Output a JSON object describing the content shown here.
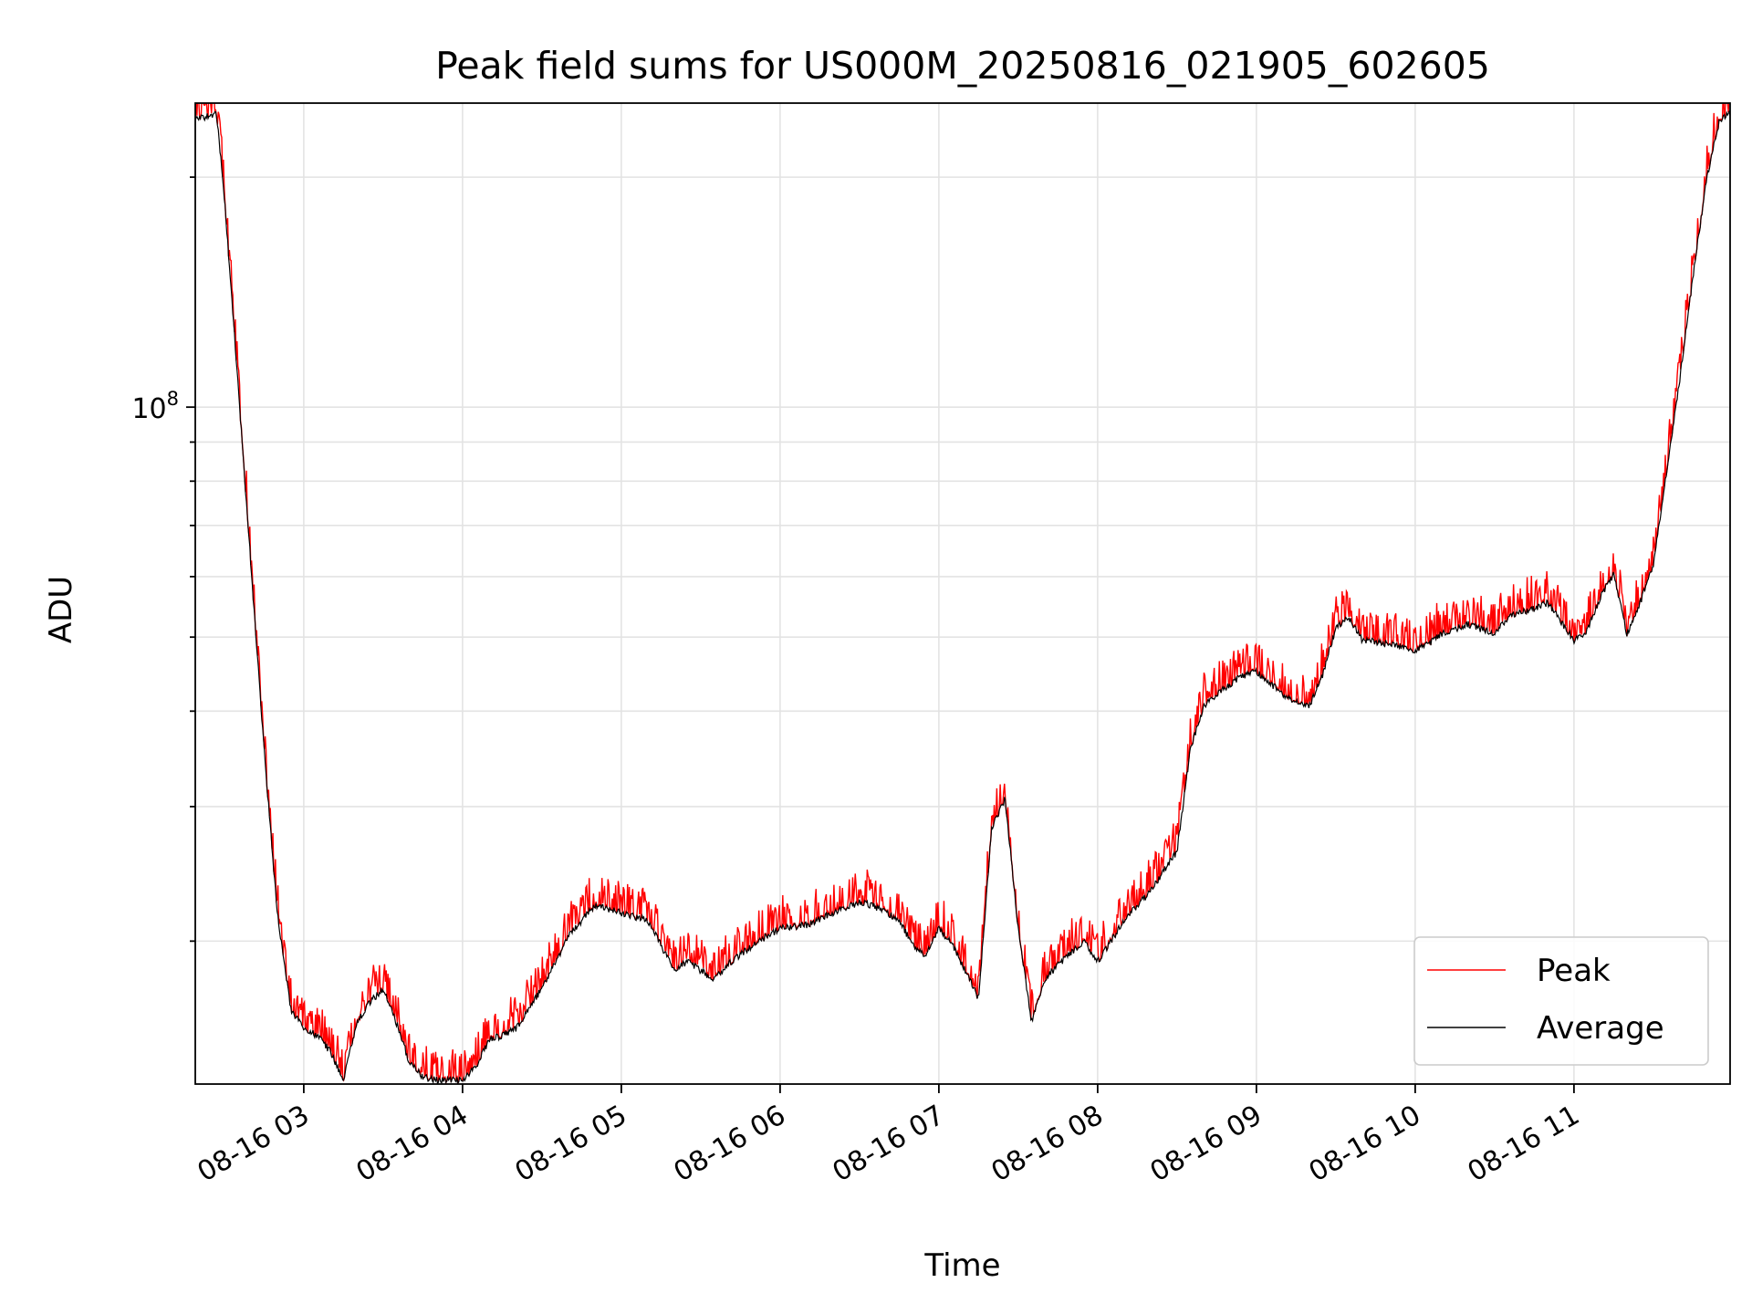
{
  "chart_data": {
    "type": "line",
    "title": "Peak field sums for US000M_20250816_021905_602605",
    "xlabel": "Time",
    "ylabel": "ADU",
    "yscale": "log",
    "ylim": [
      13000000,
      250000000
    ],
    "xlim": [
      "2025-08-16 02:19",
      "2025-08-16 11:59"
    ],
    "x_ticks": [
      {
        "t": "2025-08-16 03:00",
        "label": "08-16 03"
      },
      {
        "t": "2025-08-16 04:00",
        "label": "08-16 04"
      },
      {
        "t": "2025-08-16 05:00",
        "label": "08-16 05"
      },
      {
        "t": "2025-08-16 06:00",
        "label": "08-16 06"
      },
      {
        "t": "2025-08-16 07:00",
        "label": "08-16 07"
      },
      {
        "t": "2025-08-16 08:00",
        "label": "08-16 08"
      },
      {
        "t": "2025-08-16 09:00",
        "label": "08-16 09"
      },
      {
        "t": "2025-08-16 10:00",
        "label": "08-16 10"
      },
      {
        "t": "2025-08-16 11:00",
        "label": "08-16 11"
      }
    ],
    "y_major_tick": {
      "value": 100000000,
      "base": "10",
      "exp": "8"
    },
    "y_minor_ticks": [
      20000000,
      30000000,
      40000000,
      50000000,
      60000000,
      70000000,
      80000000,
      90000000,
      200000000
    ],
    "grid": true,
    "legend": "lower-right",
    "series": [
      {
        "name": "Peak",
        "color": "#ff0000",
        "role": "peak"
      },
      {
        "name": "Average",
        "color": "#000000",
        "role": "average"
      }
    ],
    "x": [
      "2025-08-16 02:19",
      "2025-08-16 02:27",
      "2025-08-16 02:30",
      "2025-08-16 02:35",
      "2025-08-16 02:40",
      "2025-08-16 02:45",
      "2025-08-16 02:50",
      "2025-08-16 02:55",
      "2025-08-16 03:00",
      "2025-08-16 03:05",
      "2025-08-16 03:10",
      "2025-08-16 03:15",
      "2025-08-16 03:20",
      "2025-08-16 03:25",
      "2025-08-16 03:30",
      "2025-08-16 03:35",
      "2025-08-16 03:40",
      "2025-08-16 03:45",
      "2025-08-16 03:50",
      "2025-08-16 03:55",
      "2025-08-16 04:00",
      "2025-08-16 04:05",
      "2025-08-16 04:10",
      "2025-08-16 04:15",
      "2025-08-16 04:20",
      "2025-08-16 04:30",
      "2025-08-16 04:40",
      "2025-08-16 04:45",
      "2025-08-16 04:50",
      "2025-08-16 05:00",
      "2025-08-16 05:10",
      "2025-08-16 05:20",
      "2025-08-16 05:25",
      "2025-08-16 05:35",
      "2025-08-16 05:40",
      "2025-08-16 05:50",
      "2025-08-16 06:00",
      "2025-08-16 06:10",
      "2025-08-16 06:20",
      "2025-08-16 06:30",
      "2025-08-16 06:35",
      "2025-08-16 06:45",
      "2025-08-16 06:50",
      "2025-08-16 06:55",
      "2025-08-16 07:00",
      "2025-08-16 07:05",
      "2025-08-16 07:10",
      "2025-08-16 07:15",
      "2025-08-16 07:20",
      "2025-08-16 07:25",
      "2025-08-16 07:30",
      "2025-08-16 07:35",
      "2025-08-16 07:40",
      "2025-08-16 07:45",
      "2025-08-16 07:50",
      "2025-08-16 07:55",
      "2025-08-16 08:00",
      "2025-08-16 08:05",
      "2025-08-16 08:10",
      "2025-08-16 08:20",
      "2025-08-16 08:30",
      "2025-08-16 08:35",
      "2025-08-16 08:40",
      "2025-08-16 08:45",
      "2025-08-16 08:55",
      "2025-08-16 09:00",
      "2025-08-16 09:10",
      "2025-08-16 09:15",
      "2025-08-16 09:20",
      "2025-08-16 09:25",
      "2025-08-16 09:30",
      "2025-08-16 09:35",
      "2025-08-16 09:40",
      "2025-08-16 09:50",
      "2025-08-16 10:00",
      "2025-08-16 10:05",
      "2025-08-16 10:10",
      "2025-08-16 10:20",
      "2025-08-16 10:30",
      "2025-08-16 10:35",
      "2025-08-16 10:40",
      "2025-08-16 10:45",
      "2025-08-16 10:50",
      "2025-08-16 10:55",
      "2025-08-16 11:00",
      "2025-08-16 11:05",
      "2025-08-16 11:10",
      "2025-08-16 11:15",
      "2025-08-16 11:20",
      "2025-08-16 11:25",
      "2025-08-16 11:30",
      "2025-08-16 11:35",
      "2025-08-16 11:40",
      "2025-08-16 11:45",
      "2025-08-16 11:50",
      "2025-08-16 11:55",
      "2025-08-16 11:59"
    ],
    "values": [
      240000000,
      245000000,
      190000000,
      110000000,
      63000000,
      36000000,
      22000000,
      16500000,
      15500000,
      15200000,
      14500000,
      13300000,
      15800000,
      16800000,
      17500000,
      15800000,
      14000000,
      13400000,
      13300000,
      13300000,
      13300000,
      13800000,
      15000000,
      15200000,
      15500000,
      17500000,
      20500000,
      21500000,
      22500000,
      22000000,
      21500000,
      18500000,
      19000000,
      18000000,
      18800000,
      20000000,
      21000000,
      21200000,
      22000000,
      22700000,
      22500000,
      21500000,
      20000000,
      19300000,
      21000000,
      20000000,
      18500000,
      17000000,
      28500000,
      31000000,
      21000000,
      15800000,
      18000000,
      18800000,
      19500000,
      20200000,
      19000000,
      20200000,
      21500000,
      23500000,
      26500000,
      36000000,
      41000000,
      42500000,
      45000000,
      45500000,
      42500000,
      41500000,
      41000000,
      45000000,
      52000000,
      53500000,
      50000000,
      49500000,
      48500000,
      49500000,
      51000000,
      52500000,
      51000000,
      53500000,
      54500000,
      55000000,
      56000000,
      53000000,
      50000000,
      51500000,
      57000000,
      61000000,
      51000000,
      56000000,
      63000000,
      83000000,
      110000000,
      150000000,
      200000000,
      240000000,
      245000000
    ]
  },
  "legend": {
    "peak_label": "Peak",
    "average_label": "Average"
  }
}
